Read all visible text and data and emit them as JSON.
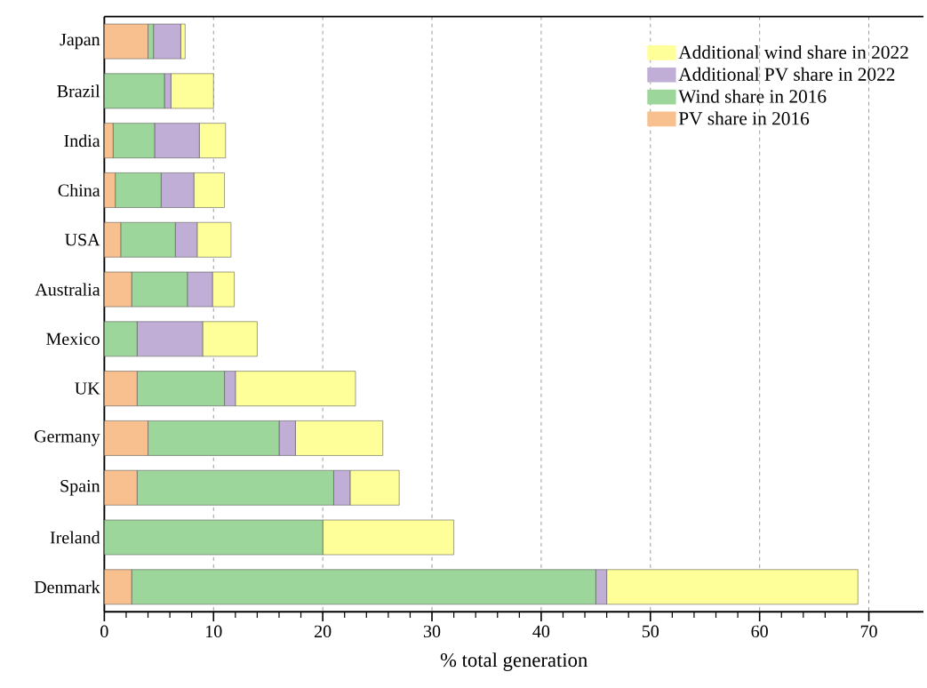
{
  "chart_data": {
    "type": "bar",
    "orientation": "horizontal",
    "stacked": true,
    "categories": [
      "Japan",
      "Brazil",
      "India",
      "China",
      "USA",
      "Australia",
      "Mexico",
      "UK",
      "Germany",
      "Spain",
      "Ireland",
      "Denmark"
    ],
    "series": [
      {
        "name": "PV share in 2016",
        "color": "#f9c08f",
        "values": [
          4.0,
          0,
          0.8,
          1.0,
          1.5,
          2.5,
          0,
          3.0,
          4.0,
          3.0,
          0,
          2.5
        ]
      },
      {
        "name": "Wind share in 2016",
        "color": "#9dd69b",
        "values": [
          0.5,
          5.5,
          3.8,
          4.2,
          5.0,
          5.1,
          3.0,
          8.0,
          12.0,
          18.0,
          20.0,
          42.5
        ]
      },
      {
        "name": "Additional PV share in 2022",
        "color": "#c0aed6",
        "values": [
          2.5,
          0.6,
          4.1,
          3.0,
          2.0,
          2.3,
          6.0,
          1.0,
          1.5,
          1.5,
          0,
          1.0
        ]
      },
      {
        "name": "Additional wind share in 2022",
        "color": "#ffff99",
        "values": [
          0.4,
          3.9,
          2.4,
          2.8,
          3.1,
          2.0,
          5.0,
          11.0,
          8.0,
          4.5,
          12.0,
          23.0
        ]
      }
    ],
    "xlabel": "% total generation",
    "xlim": [
      0,
      75
    ],
    "xticks": [
      0,
      10,
      20,
      30,
      40,
      50,
      60,
      70
    ],
    "grid": "x",
    "legend": "top right"
  }
}
